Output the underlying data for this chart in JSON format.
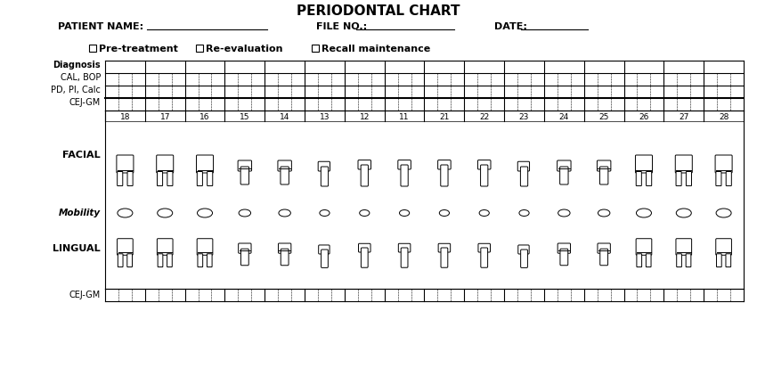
{
  "title": "PERIODONTAL CHART",
  "patient_label": "PATIENT NAME:",
  "file_label": "FILE NO.:",
  "date_label": "DATE:",
  "checkbox_labels": [
    "Pre-treatment",
    "Re-evaluation",
    "Recall maintenance"
  ],
  "row_labels_top": [
    "Diagnosis",
    "CAL, BOP",
    "PD, PI, Calc",
    "CEJ-GM"
  ],
  "tooth_numbers": [
    "18",
    "17",
    "16",
    "15",
    "14",
    "13",
    "12",
    "11",
    "21",
    "22",
    "23",
    "24",
    "25",
    "26",
    "27",
    "28"
  ],
  "facial_label": "FACIAL",
  "mobility_label": "Mobility",
  "lingual_label": "LINGUAL",
  "cej_gm_bottom": "CEJ-GM",
  "bg_color": "#ffffff",
  "grid_color": "#000000",
  "text_color": "#000000",
  "num_columns": 16,
  "num_sub_cols": 3
}
